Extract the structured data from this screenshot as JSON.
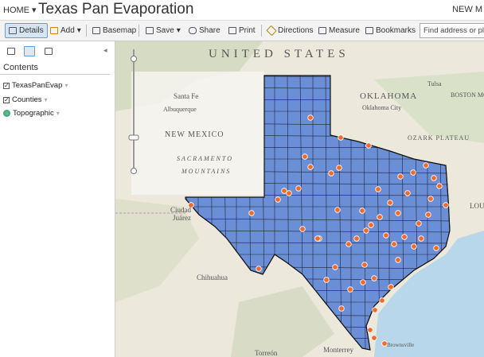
{
  "header": {
    "home": "HOME",
    "title": "Texas Pan Evaporation",
    "right_link": "NEW M"
  },
  "toolbar": {
    "buttons": [
      "Details",
      "Add",
      "Basemap",
      "Save",
      "Share",
      "Print",
      "Directions",
      "Measure",
      "Bookmarks"
    ],
    "search_placeholder": "Find address or place"
  },
  "sidebar": {
    "heading": "Contents",
    "layers": [
      "TexasPanEvap",
      "Counties",
      "Topographic"
    ]
  },
  "map": {
    "labels": [
      "UNITED STATES",
      "OKLAHOMA",
      "Tulsa",
      "Oklahoma City",
      "Santa Fe",
      "Albuquerque",
      "NEW MEXICO",
      "SACRAMENTO",
      "MOUNTAINS",
      "Ciudad",
      "Juárez",
      "Chihuahua",
      "Torreón",
      "Monterrey",
      "Brownsville",
      "OZARK PLATEAU",
      "BOSTON MO",
      "LOU"
    ]
  }
}
